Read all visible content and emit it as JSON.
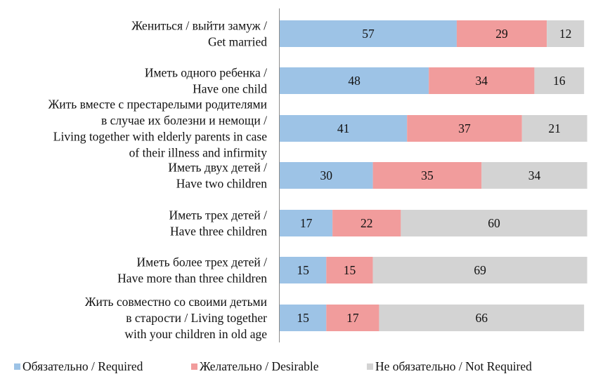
{
  "chart_data": {
    "type": "bar",
    "orientation": "horizontal",
    "stacked": true,
    "xlim": [
      0,
      100
    ],
    "categories": [
      [
        "Жениться / выйти замуж /",
        "Get married"
      ],
      [
        "Иметь одного ребенка /",
        "Have one child"
      ],
      [
        "Жить вместе с престарелыми родителями",
        "в случае их болезни и немощи /",
        "Living together with elderly parents in case",
        "of their illness and infirmity"
      ],
      [
        "Иметь двух детей /",
        "Have two children"
      ],
      [
        "Иметь трех детей /",
        "Have three children"
      ],
      [
        "Иметь более трех детей /",
        "Have more than three children"
      ],
      [
        "Жить совместно со своими детьми",
        "в старости / Living together",
        "with your children in old age"
      ]
    ],
    "series": [
      {
        "name": "Обязательно / Required",
        "color": "#9dc3e6",
        "values": [
          57,
          48,
          41,
          30,
          17,
          15,
          15
        ]
      },
      {
        "name": "Желательно / Desirable",
        "color": "#f19c9c",
        "values": [
          29,
          34,
          37,
          35,
          22,
          15,
          17
        ]
      },
      {
        "name": "Не обязательно / Not Required",
        "color": "#d3d3d3",
        "values": [
          12,
          16,
          21,
          34,
          60,
          69,
          66
        ]
      }
    ],
    "legend_position": "bottom",
    "grid": false
  }
}
